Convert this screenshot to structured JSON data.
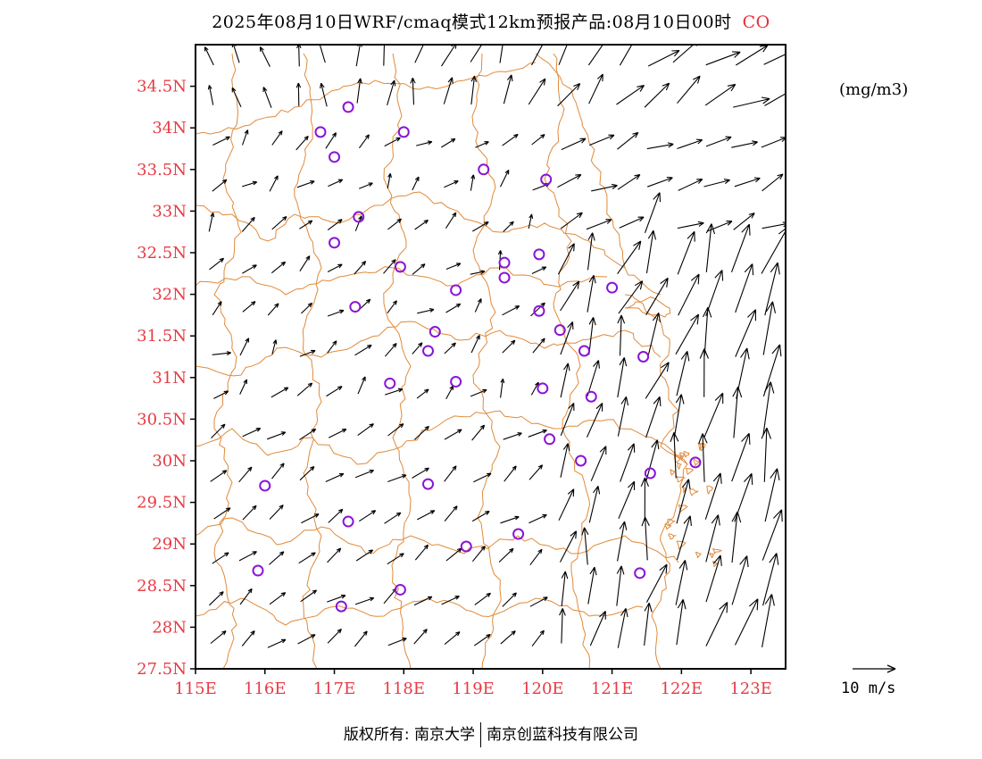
{
  "title": {
    "text": "2025年08月10日WRF/cmaq模式12km预报产品:08月10日00时",
    "pollutant": "CO"
  },
  "units": "(mg/m3)",
  "credit": {
    "left": "版权所有: 南京大学",
    "right": "南京创蓝科技有限公司"
  },
  "reference_vector": {
    "label": "10 m/s"
  },
  "colors": {
    "tick_label": "#e83a44",
    "boundary": "#e08a3a",
    "station": "#8a14d6",
    "arrow": "#000000"
  },
  "chart_data": {
    "type": "map",
    "lon_range": [
      115,
      123.5
    ],
    "lat_range": [
      27.5,
      35
    ],
    "x_ticks": [
      "115E",
      "116E",
      "117E",
      "118E",
      "119E",
      "120E",
      "121E",
      "122E",
      "123E"
    ],
    "y_ticks": [
      "27.5N",
      "28N",
      "28.5N",
      "29N",
      "29.5N",
      "30N",
      "30.5N",
      "31N",
      "31.5N",
      "32N",
      "32.5N",
      "33N",
      "33.5N",
      "34N",
      "34.5N"
    ],
    "stations": [
      {
        "lon": 117.2,
        "lat": 34.25
      },
      {
        "lon": 118.0,
        "lat": 33.95
      },
      {
        "lon": 116.8,
        "lat": 33.95
      },
      {
        "lon": 117.0,
        "lat": 33.65
      },
      {
        "lon": 119.15,
        "lat": 33.5
      },
      {
        "lon": 120.05,
        "lat": 33.38
      },
      {
        "lon": 117.35,
        "lat": 32.93
      },
      {
        "lon": 117.0,
        "lat": 32.62
      },
      {
        "lon": 119.95,
        "lat": 32.48
      },
      {
        "lon": 119.45,
        "lat": 32.38
      },
      {
        "lon": 117.95,
        "lat": 32.33
      },
      {
        "lon": 119.45,
        "lat": 32.2
      },
      {
        "lon": 118.75,
        "lat": 32.05
      },
      {
        "lon": 121.0,
        "lat": 32.08
      },
      {
        "lon": 117.3,
        "lat": 31.85
      },
      {
        "lon": 119.95,
        "lat": 31.8
      },
      {
        "lon": 118.45,
        "lat": 31.55
      },
      {
        "lon": 120.25,
        "lat": 31.57
      },
      {
        "lon": 118.35,
        "lat": 31.32
      },
      {
        "lon": 120.6,
        "lat": 31.32
      },
      {
        "lon": 121.45,
        "lat": 31.25
      },
      {
        "lon": 117.8,
        "lat": 30.93
      },
      {
        "lon": 118.75,
        "lat": 30.95
      },
      {
        "lon": 120.0,
        "lat": 30.87
      },
      {
        "lon": 120.7,
        "lat": 30.77
      },
      {
        "lon": 120.1,
        "lat": 30.26
      },
      {
        "lon": 120.55,
        "lat": 30.0
      },
      {
        "lon": 122.2,
        "lat": 29.98
      },
      {
        "lon": 121.55,
        "lat": 29.85
      },
      {
        "lon": 116.0,
        "lat": 29.7
      },
      {
        "lon": 118.35,
        "lat": 29.72
      },
      {
        "lon": 117.2,
        "lat": 29.27
      },
      {
        "lon": 119.65,
        "lat": 29.12
      },
      {
        "lon": 118.9,
        "lat": 28.97
      },
      {
        "lon": 115.9,
        "lat": 28.68
      },
      {
        "lon": 121.4,
        "lat": 28.65
      },
      {
        "lon": 117.95,
        "lat": 28.45
      },
      {
        "lon": 117.1,
        "lat": 28.25
      }
    ]
  }
}
